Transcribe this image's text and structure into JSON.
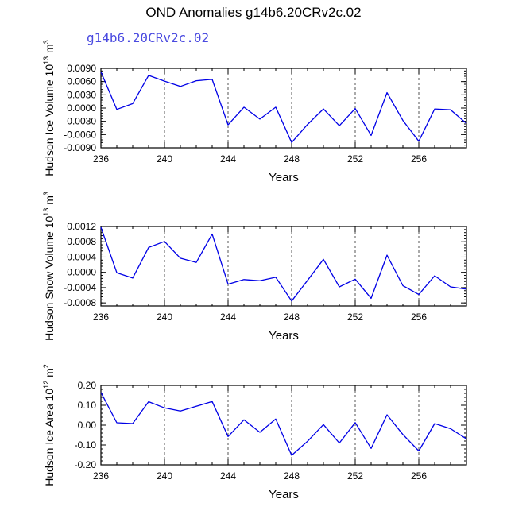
{
  "title": "OND Anomalies g14b6.20CRv2c.02",
  "case_label": "g14b6.20CRv2c.02",
  "colors": {
    "line": "#0000e6",
    "case_label": "#4a4ae0",
    "grid": "#555555"
  },
  "chart_data": [
    {
      "type": "line",
      "title": "",
      "xlabel": "Years",
      "ylabel": {
        "main": "Hudson Ice Volume 10",
        "exp": "13",
        "unit": " m",
        "unit_exp": "3"
      },
      "x": [
        236,
        237,
        238,
        239,
        240,
        241,
        242,
        243,
        244,
        245,
        246,
        247,
        248,
        249,
        250,
        251,
        252,
        253,
        254,
        255,
        256,
        257,
        258,
        259
      ],
      "xlim": [
        236,
        259
      ],
      "xticks": [
        236,
        240,
        244,
        248,
        252,
        256
      ],
      "series": [
        {
          "values": [
            0.0082,
            -0.0003,
            0.001,
            0.0074,
            0.0061,
            0.0049,
            0.0062,
            0.0065,
            -0.0038,
            0.0002,
            -0.0025,
            0.0002,
            -0.0078,
            -0.0037,
            -0.0002,
            -0.004,
            -0.0001,
            -0.0062,
            0.0035,
            -0.0028,
            -0.0075,
            -0.0002,
            -0.0004,
            -0.0035
          ]
        }
      ],
      "ylim": [
        -0.009,
        0.009
      ],
      "yticks": [
        0.009,
        0.006,
        0.003,
        0.0,
        -0.003,
        -0.006,
        -0.009
      ],
      "ytick_labels": [
        "0.0090",
        "0.0060",
        "0.0030",
        "0.0000",
        "-0.0030",
        "-0.0060",
        "-0.0090"
      ],
      "vgrid": [
        240,
        244,
        248,
        252,
        256
      ]
    },
    {
      "type": "line",
      "title": "",
      "xlabel": "Years",
      "ylabel": {
        "main": "Hudson Snow Volume 10",
        "exp": "13",
        "unit": " m",
        "unit_exp": "3"
      },
      "x": [
        236,
        237,
        238,
        239,
        240,
        241,
        242,
        243,
        244,
        245,
        246,
        247,
        248,
        249,
        250,
        251,
        252,
        253,
        254,
        255,
        256,
        257,
        258,
        259
      ],
      "xlim": [
        236,
        259
      ],
      "xticks": [
        236,
        240,
        244,
        248,
        252,
        256
      ],
      "series": [
        {
          "values": [
            0.00118,
            -1e-05,
            -0.00015,
            0.00065,
            0.00081,
            0.00037,
            0.00026,
            0.001,
            -0.00031,
            -0.00019,
            -0.00022,
            -0.00013,
            -0.00075,
            -0.00021,
            0.00034,
            -0.00038,
            -0.00018,
            -0.00068,
            0.00045,
            -0.00035,
            -0.00058,
            -9e-05,
            -0.00038,
            -0.00044
          ]
        }
      ],
      "ylim": [
        -0.00088,
        0.0012
      ],
      "yticks": [
        0.0012,
        0.0008,
        0.0004,
        0.0,
        -0.0004,
        -0.0008
      ],
      "ytick_labels": [
        "0.0012",
        "0.0008",
        "0.0004",
        "-0.0000",
        "-0.0004",
        "-0.0008"
      ],
      "vgrid": [
        240,
        244,
        248,
        252,
        256
      ]
    },
    {
      "type": "line",
      "title": "",
      "xlabel": "Years",
      "ylabel": {
        "main": "Hudson Ice Area 10",
        "exp": "12",
        "unit": " m",
        "unit_exp": "2"
      },
      "x": [
        236,
        237,
        238,
        239,
        240,
        241,
        242,
        243,
        244,
        245,
        246,
        247,
        248,
        249,
        250,
        251,
        252,
        253,
        254,
        255,
        256,
        257,
        258,
        259
      ],
      "xlim": [
        236,
        259
      ],
      "xticks": [
        236,
        240,
        244,
        248,
        252,
        256
      ],
      "series": [
        {
          "values": [
            0.165,
            0.012,
            0.008,
            0.118,
            0.087,
            0.071,
            0.095,
            0.119,
            -0.057,
            0.027,
            -0.036,
            0.031,
            -0.152,
            -0.081,
            0.003,
            -0.09,
            0.013,
            -0.117,
            0.052,
            -0.047,
            -0.13,
            0.008,
            -0.018,
            -0.069
          ]
        }
      ],
      "ylim": [
        -0.2,
        0.2
      ],
      "yticks": [
        0.2,
        0.1,
        0.0,
        -0.1,
        -0.2
      ],
      "ytick_labels": [
        "0.20",
        "0.10",
        "0.00",
        "-0.10",
        "-0.20"
      ],
      "vgrid": [
        240,
        244,
        248,
        252,
        256
      ]
    }
  ]
}
